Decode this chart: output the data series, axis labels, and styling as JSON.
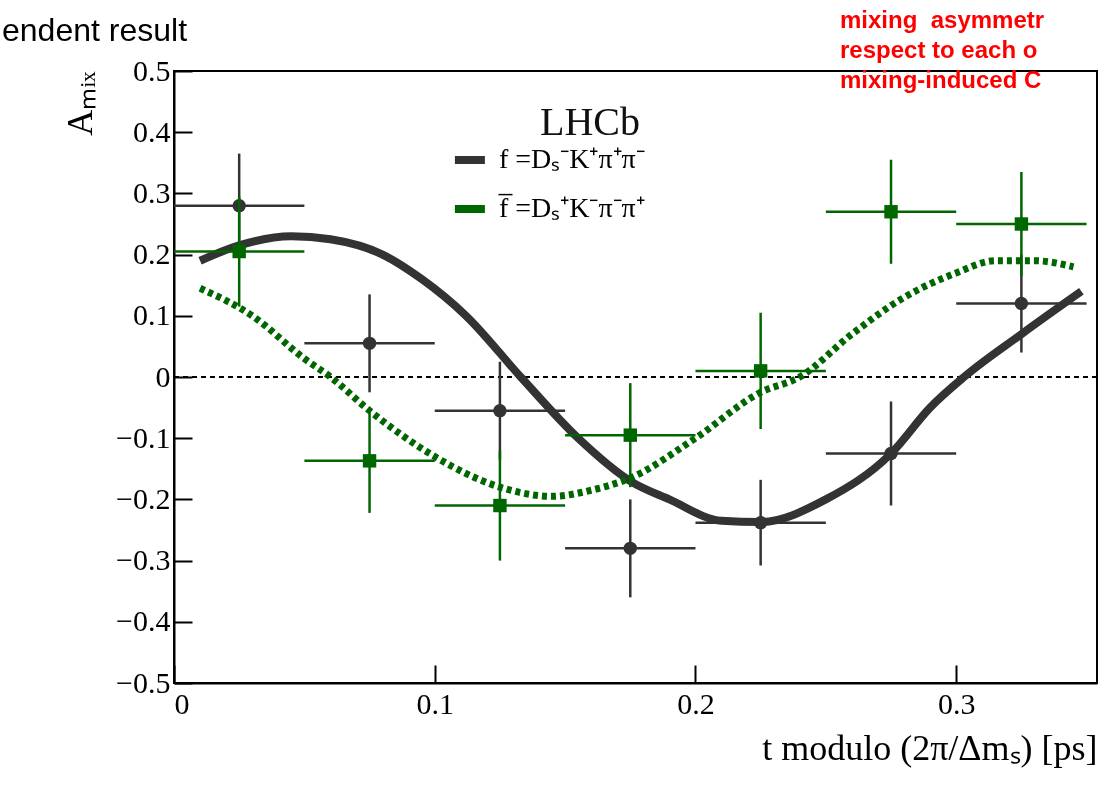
{
  "chart_data": {
    "type": "scatter",
    "xlabel": "t modulo (2π/Δmₛ) [ps]",
    "ylabel": "Aₘᵢₓ",
    "annotations": [
      "endent result",
      "LHCb",
      "mixing  asymmetr",
      "respect to each o",
      "mixing-induced C"
    ],
    "xlim": [
      0,
      0.354
    ],
    "xticks": [
      0,
      0.1,
      0.2,
      0.3
    ],
    "ylim": [
      -0.5,
      0.5
    ],
    "yticks": [
      -0.5,
      -0.4,
      -0.3,
      -0.2,
      -0.1,
      0,
      0.1,
      0.2,
      0.3,
      0.4,
      0.5
    ],
    "grid": false,
    "legend": "top",
    "ref_lines": [
      {
        "axis": "y",
        "value": 0,
        "line_style": "dotted",
        "color": "#000000"
      }
    ],
    "series": [
      {
        "type": "line",
        "name": "f =Dₛ⁻K⁺π⁺π⁻",
        "color": "#333333",
        "line_style": "solid",
        "x": [
          0.01,
          0.025,
          0.045,
          0.06,
          0.08,
          0.095,
          0.112,
          0.133,
          0.155,
          0.175,
          0.19,
          0.21,
          0.225,
          0.25,
          0.275,
          0.29,
          0.303,
          0.325,
          0.348
        ],
        "values": [
          0.19,
          0.215,
          0.23,
          0.225,
          0.2,
          0.16,
          0.1,
          0,
          -0.1,
          -0.17,
          -0.2,
          -0.235,
          -0.237,
          -0.2,
          -0.125,
          -0.05,
          0,
          0.07,
          0.14
        ]
      },
      {
        "type": "line",
        "name": "f̅ =Dₛ⁺K⁻π⁻π⁺",
        "color": "#006600",
        "line_style": "dotted",
        "x": [
          0.01,
          0.03,
          0.05,
          0.06,
          0.075,
          0.1,
          0.125,
          0.145,
          0.16,
          0.175,
          0.2,
          0.225,
          0.24,
          0.26,
          0.28,
          0.3,
          0.315,
          0.33,
          0.345
        ],
        "values": [
          0.145,
          0.1,
          0.03,
          0,
          -0.055,
          -0.13,
          -0.18,
          -0.195,
          -0.185,
          -0.165,
          -0.1,
          -0.025,
          0,
          0.07,
          0.13,
          0.17,
          0.19,
          0.19,
          0.18
        ]
      },
      {
        "color": "#333333",
        "marker": "circle",
        "x": [
          0.025,
          0.075,
          0.125,
          0.175,
          0.225,
          0.275,
          0.325
        ],
        "values": [
          0.28,
          0.055,
          -0.055,
          -0.28,
          -0.238,
          -0.125,
          0.12
        ],
        "errors": [
          0.085,
          0.08,
          0.08,
          0.08,
          0.07,
          0.085,
          0.08
        ],
        "xerrors": [
          0.025,
          0.025,
          0.025,
          0.025,
          0.025,
          0.025,
          0.025
        ]
      },
      {
        "color": "#006600",
        "marker": "square",
        "x": [
          0.025,
          0.075,
          0.125,
          0.175,
          0.225,
          0.275,
          0.325
        ],
        "values": [
          0.205,
          -0.137,
          -0.21,
          -0.095,
          0.01,
          0.27,
          0.25
        ],
        "errors": [
          0.09,
          0.085,
          0.09,
          0.085,
          0.095,
          0.085,
          0.085
        ],
        "xerrors": [
          0.025,
          0.025,
          0.025,
          0.025,
          0.025,
          0.025,
          0.025
        ]
      }
    ]
  }
}
